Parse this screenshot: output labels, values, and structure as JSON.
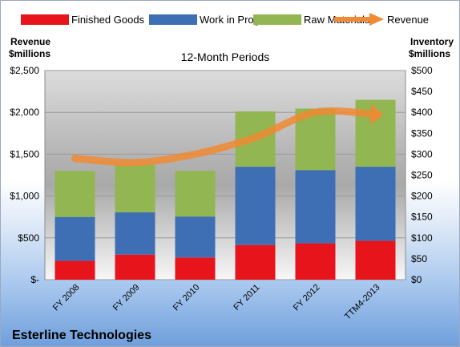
{
  "company": "Esterline Technologies",
  "chart_data": {
    "type": "bar",
    "stacked": true,
    "title": "12-Month Periods",
    "left_axis_label_line1": "Revenue",
    "left_axis_label_line2": "$millions",
    "right_axis_label_line1": "Inventory",
    "right_axis_label_line2": "$millions",
    "categories": [
      "FY 2008",
      "FY 2009",
      "FY 2010",
      "FY 2011",
      "FY 2012",
      "TTM4-2013"
    ],
    "left_ticks": [
      "$-",
      "$500",
      "$1,000",
      "$1,500",
      "$2,000",
      "$2,500"
    ],
    "right_ticks": [
      "$0",
      "$50",
      "$100",
      "$150",
      "$200",
      "$250",
      "$300",
      "$350",
      "$400",
      "$450",
      "$500"
    ],
    "ylim_left": [
      0,
      2500
    ],
    "ylim_right": [
      0,
      500
    ],
    "series": [
      {
        "name": "Finished Goods",
        "axis": "right",
        "color": "#e8141c",
        "values": [
          45,
          60,
          53,
          83,
          87,
          93
        ]
      },
      {
        "name": "Work in Progress",
        "axis": "right",
        "color": "#3e6fb5",
        "values": [
          105,
          101,
          98,
          187,
          175,
          177
        ]
      },
      {
        "name": "Raw Materials",
        "axis": "right",
        "color": "#92b651",
        "values": [
          110,
          114,
          109,
          132,
          147,
          160
        ]
      },
      {
        "name": "Revenue",
        "axis": "left",
        "color": "#f08a33",
        "type": "line",
        "values": [
          1450,
          1400,
          1500,
          1700,
          2000,
          1975
        ]
      }
    ],
    "grid": true,
    "legend_position": "top"
  }
}
